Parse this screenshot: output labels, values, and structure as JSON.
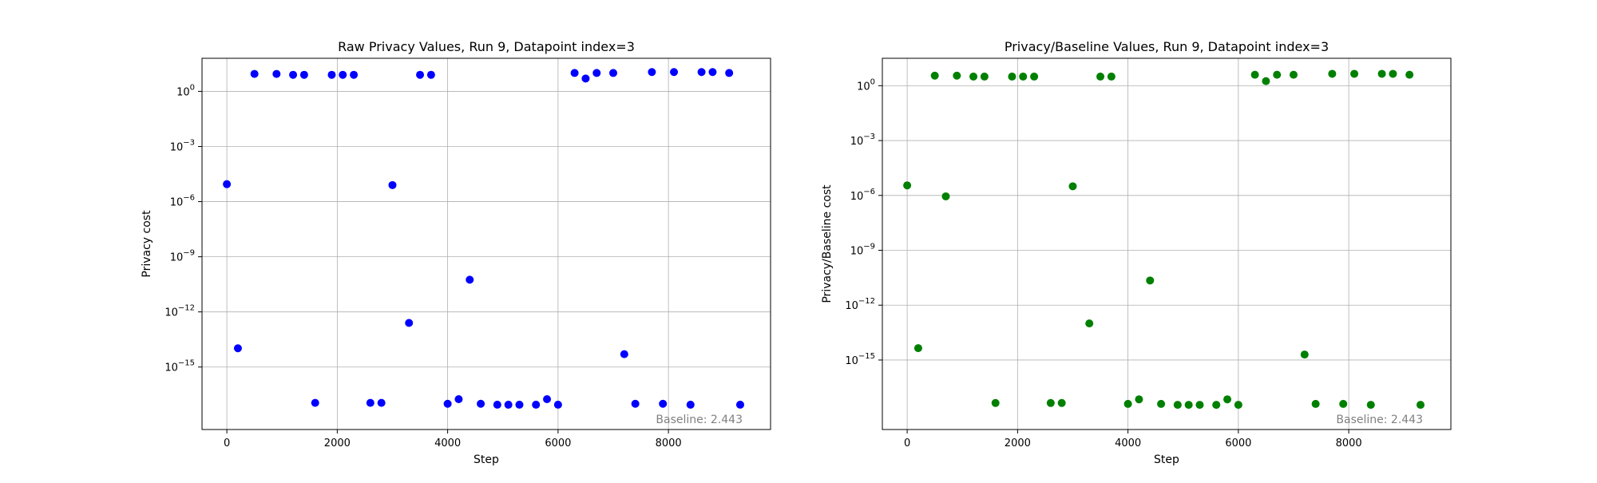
{
  "chart_data": [
    {
      "type": "scatter",
      "title": "Raw Privacy Values, Run 9, Datapoint index=3",
      "xlabel": "Step",
      "ylabel": "Privacy cost",
      "yscale": "log",
      "xlim": [
        -450,
        9850
      ],
      "ylim_log10_exponent": [
        -18.4,
        1.8
      ],
      "xticks": [
        0,
        2000,
        4000,
        6000,
        8000
      ],
      "xtick_labels": [
        "0",
        "2000",
        "4000",
        "6000",
        "8000"
      ],
      "ytick_exponents": [
        0,
        -3,
        -6,
        -9,
        -12,
        -15
      ],
      "ytick_labels": [
        "10",
        "10",
        "10",
        "10",
        "10",
        "10"
      ],
      "ytick_sups": [
        "0",
        "−3",
        "−6",
        "−9",
        "−12",
        "−15"
      ],
      "grid": true,
      "color": "#0000ff",
      "annotation": "Baseline: 2.443",
      "x": [
        0,
        200,
        500,
        900,
        1200,
        1400,
        1600,
        1900,
        2100,
        2300,
        2600,
        2800,
        3000,
        3300,
        3500,
        3700,
        4000,
        4200,
        4400,
        4600,
        4900,
        5100,
        5300,
        5600,
        5800,
        6000,
        6300,
        6500,
        6700,
        7000,
        7200,
        7400,
        7700,
        7900,
        8100,
        8400,
        8600,
        8800,
        9100,
        9300
      ],
      "y_exponent": [
        -5.05,
        -13.98,
        0.95,
        0.95,
        0.9,
        0.9,
        -16.95,
        0.9,
        0.9,
        0.9,
        -16.95,
        -16.95,
        -5.1,
        -12.6,
        0.9,
        0.9,
        -17.0,
        -16.75,
        -10.25,
        -17.0,
        -17.05,
        -17.05,
        -17.05,
        -17.05,
        -16.75,
        -17.05,
        1.0,
        0.7,
        1.0,
        1.0,
        -14.3,
        -17.0,
        1.05,
        -17.0,
        1.05,
        -17.05,
        1.05,
        1.05,
        1.0,
        -17.05
      ]
    },
    {
      "type": "scatter",
      "title": "Privacy/Baseline Values, Run 9, Datapoint index=3",
      "xlabel": "Step",
      "ylabel": "Privacy/Baseline cost",
      "yscale": "log",
      "xlim": [
        -450,
        9850
      ],
      "ylim_log10_exponent": [
        -18.8,
        1.5
      ],
      "xticks": [
        0,
        2000,
        4000,
        6000,
        8000
      ],
      "xtick_labels": [
        "0",
        "2000",
        "4000",
        "6000",
        "8000"
      ],
      "ytick_exponents": [
        0,
        -3,
        -6,
        -9,
        -12,
        -15
      ],
      "ytick_labels": [
        "10",
        "10",
        "10",
        "10",
        "10",
        "10"
      ],
      "ytick_sups": [
        "0",
        "−3",
        "−6",
        "−9",
        "−12",
        "−15"
      ],
      "grid": true,
      "color": "#008000",
      "annotation": "Baseline: 2.443",
      "x": [
        0,
        200,
        500,
        700,
        900,
        1200,
        1400,
        1600,
        1900,
        2100,
        2300,
        2600,
        2800,
        3000,
        3300,
        3500,
        3700,
        4000,
        4200,
        4400,
        4600,
        4900,
        5100,
        5300,
        5600,
        5800,
        6000,
        6300,
        6500,
        6700,
        7000,
        7200,
        7400,
        7700,
        7900,
        8100,
        8400,
        8600,
        8800,
        9100,
        9300
      ],
      "y_exponent": [
        -5.45,
        -14.35,
        0.55,
        -6.05,
        0.55,
        0.5,
        0.5,
        -17.35,
        0.5,
        0.5,
        0.5,
        -17.35,
        -17.35,
        -5.5,
        -13.0,
        0.5,
        0.5,
        -17.4,
        -17.15,
        -10.65,
        -17.4,
        -17.45,
        -17.45,
        -17.45,
        -17.45,
        -17.15,
        -17.45,
        0.6,
        0.25,
        0.6,
        0.6,
        -14.7,
        -17.4,
        0.65,
        -17.4,
        0.65,
        -17.45,
        0.65,
        0.65,
        0.6,
        -17.45
      ]
    }
  ]
}
